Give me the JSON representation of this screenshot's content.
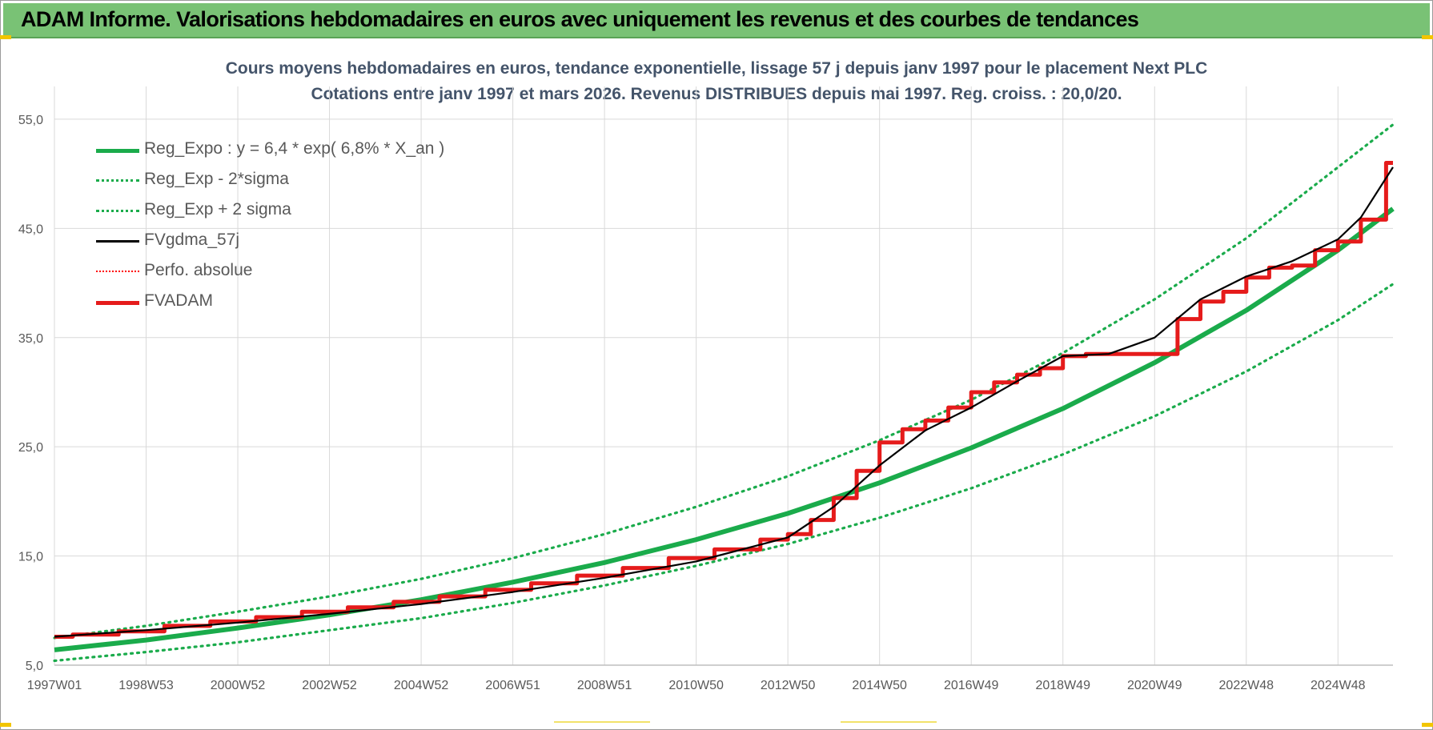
{
  "banner": {
    "title": "ADAM Informe. Valorisations hebdomadaires en euros avec uniquement les revenus et des courbes de tendances"
  },
  "chart_data": {
    "type": "line",
    "title": "Cours moyens hebdomadaires en euros, tendance exponentielle, lissage 57 j depuis janv 1997  pour le placement Next PLC",
    "subtitle": "Cotations entre janv 1997 et mars 2026. Revenus DISTRIBUES depuis mai 1997. Reg. croiss. : 20,0/20.",
    "xlabel": "",
    "ylabel": "",
    "x_start_year": 1997,
    "x_end_year": 2026.2,
    "ylim": [
      5,
      58
    ],
    "yticks": [
      "55,0",
      "45,0",
      "35,0",
      "25,0",
      "15,0",
      "5,0"
    ],
    "ytick_values": [
      55,
      45,
      35,
      25,
      15,
      5
    ],
    "xticks": [
      "1997W01",
      "1998W53",
      "2000W52",
      "2002W52",
      "2004W52",
      "2006W51",
      "2008W51",
      "2010W50",
      "2012W50",
      "2014W50",
      "2016W49",
      "2018W49",
      "2020W49",
      "2022W48",
      "2024W48"
    ],
    "xtick_years": [
      1997.0,
      1999.0,
      2001.0,
      2003.0,
      2005.0,
      2007.0,
      2009.0,
      2011.0,
      2013.0,
      2015.0,
      2017.0,
      2019.0,
      2021.0,
      2023.0,
      2025.0
    ],
    "grid": true,
    "legend_position": "top-left",
    "series": [
      {
        "name": "Reg_Expo : y = 6,4 * exp( 6,8% *  X_an )",
        "color": "#1aab4b",
        "style": "solid-thick",
        "x": [
          1997.0,
          1999.0,
          2001.0,
          2003.0,
          2005.0,
          2007.0,
          2009.0,
          2011.0,
          2013.0,
          2015.0,
          2017.0,
          2019.0,
          2021.0,
          2023.0,
          2025.0,
          2026.2
        ],
        "y": [
          6.4,
          7.3,
          8.4,
          9.6,
          11.0,
          12.6,
          14.4,
          16.5,
          18.9,
          21.7,
          24.9,
          28.5,
          32.7,
          37.5,
          43.0,
          46.8
        ]
      },
      {
        "name": "Reg_Exp - 2*sigma",
        "color": "#1aab4b",
        "style": "dotted",
        "x": [
          1997.0,
          1999.0,
          2001.0,
          2003.0,
          2005.0,
          2007.0,
          2009.0,
          2011.0,
          2013.0,
          2015.0,
          2017.0,
          2019.0,
          2021.0,
          2023.0,
          2025.0,
          2026.2
        ],
        "y": [
          5.4,
          6.2,
          7.1,
          8.2,
          9.3,
          10.7,
          12.3,
          14.1,
          16.1,
          18.5,
          21.2,
          24.3,
          27.8,
          31.9,
          36.6,
          39.9
        ]
      },
      {
        "name": "Reg_Exp + 2 sigma",
        "color": "#1aab4b",
        "style": "dotted",
        "x": [
          1997.0,
          1999.0,
          2001.0,
          2003.0,
          2005.0,
          2007.0,
          2009.0,
          2011.0,
          2013.0,
          2015.0,
          2017.0,
          2019.0,
          2021.0,
          2023.0,
          2025.0,
          2026.2
        ],
        "y": [
          7.5,
          8.6,
          9.9,
          11.3,
          12.9,
          14.8,
          17.0,
          19.5,
          22.3,
          25.6,
          29.3,
          33.6,
          38.5,
          44.1,
          50.6,
          54.5
        ]
      },
      {
        "name": "FVgdma_57j",
        "color": "#000000",
        "style": "solid",
        "x": [
          1997.0,
          1999.0,
          2001.0,
          2003.0,
          2005.0,
          2007.0,
          2009.0,
          2011.0,
          2013.0,
          2014.0,
          2015.0,
          2016.0,
          2017.0,
          2018.0,
          2019.0,
          2020.0,
          2021.0,
          2022.0,
          2023.0,
          2024.0,
          2025.0,
          2025.5,
          2026.2
        ],
        "y": [
          7.6,
          8.2,
          8.9,
          9.7,
          10.6,
          11.7,
          13.0,
          14.5,
          16.7,
          19.5,
          23.3,
          26.5,
          28.6,
          31.0,
          33.3,
          33.5,
          35.0,
          38.5,
          40.6,
          42.0,
          44.0,
          46.0,
          50.6
        ]
      },
      {
        "name": "Perfo. absolue",
        "color": "#ff0000",
        "style": "dotted",
        "x": [],
        "y": []
      },
      {
        "name": "FVADAM",
        "color": "#e51b1b",
        "style": "step-thick",
        "x": [
          1997.0,
          1997.4,
          1998.4,
          1999.4,
          2000.4,
          2001.4,
          2002.4,
          2003.4,
          2004.4,
          2005.4,
          2006.4,
          2007.4,
          2008.4,
          2009.4,
          2010.4,
          2011.4,
          2012.4,
          2013.0,
          2013.5,
          2014.0,
          2014.5,
          2015.0,
          2015.5,
          2016.0,
          2016.5,
          2017.0,
          2017.5,
          2018.0,
          2018.5,
          2019.0,
          2019.5,
          2020.0,
          2021.0,
          2021.5,
          2022.0,
          2022.5,
          2023.0,
          2023.5,
          2024.0,
          2024.5,
          2025.0,
          2025.5,
          2026.05,
          2026.2
        ],
        "y": [
          7.6,
          7.8,
          8.1,
          8.6,
          9.0,
          9.4,
          9.9,
          10.3,
          10.8,
          11.3,
          11.9,
          12.5,
          13.2,
          13.9,
          14.8,
          15.6,
          16.5,
          17.0,
          18.3,
          20.3,
          22.8,
          25.4,
          26.6,
          27.4,
          28.6,
          30.0,
          30.9,
          31.6,
          32.2,
          33.3,
          33.5,
          33.5,
          33.5,
          36.7,
          38.3,
          39.2,
          40.5,
          41.4,
          41.6,
          43.0,
          43.8,
          45.8,
          51.0,
          51.0
        ]
      }
    ]
  }
}
